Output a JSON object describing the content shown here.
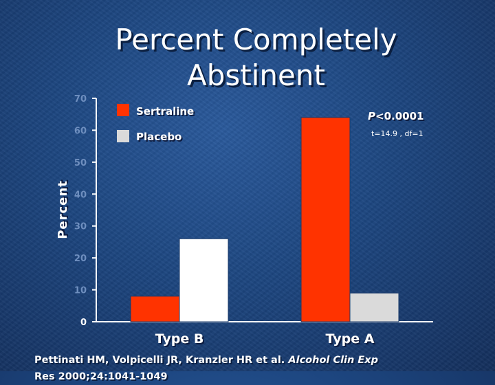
{
  "title_lines": [
    "Percent Completely",
    "Abstinent"
  ],
  "citation": {
    "authors": "Pettinati HM, Volpicelli JR, Kranzler HR et al.",
    "journal": "Alcohol Clin Exp",
    "cut_off_text": "Res 2000;24:1041-1049"
  },
  "colors": {
    "sertraline": "#ff3300",
    "placebo": "#ffffff",
    "placebo_type_a": "#dadada"
  },
  "chart_data": {
    "type": "bar",
    "categories": [
      "Type B",
      "Type A"
    ],
    "series": [
      {
        "name": "Sertraline",
        "values": [
          8,
          64
        ]
      },
      {
        "name": "Placebo",
        "values": [
          26,
          9
        ]
      }
    ],
    "ylabel": "Percent",
    "ylim": [
      0,
      70
    ],
    "yticks": [
      0,
      10,
      20,
      30,
      40,
      50,
      60,
      70
    ],
    "legend": {
      "position": "top-left",
      "entries": [
        "Sertraline",
        "Placebo"
      ]
    },
    "annotations": {
      "p_prefix": "P",
      "p_value": "<0.0001",
      "stat": "t=14.9 , df=1"
    }
  }
}
